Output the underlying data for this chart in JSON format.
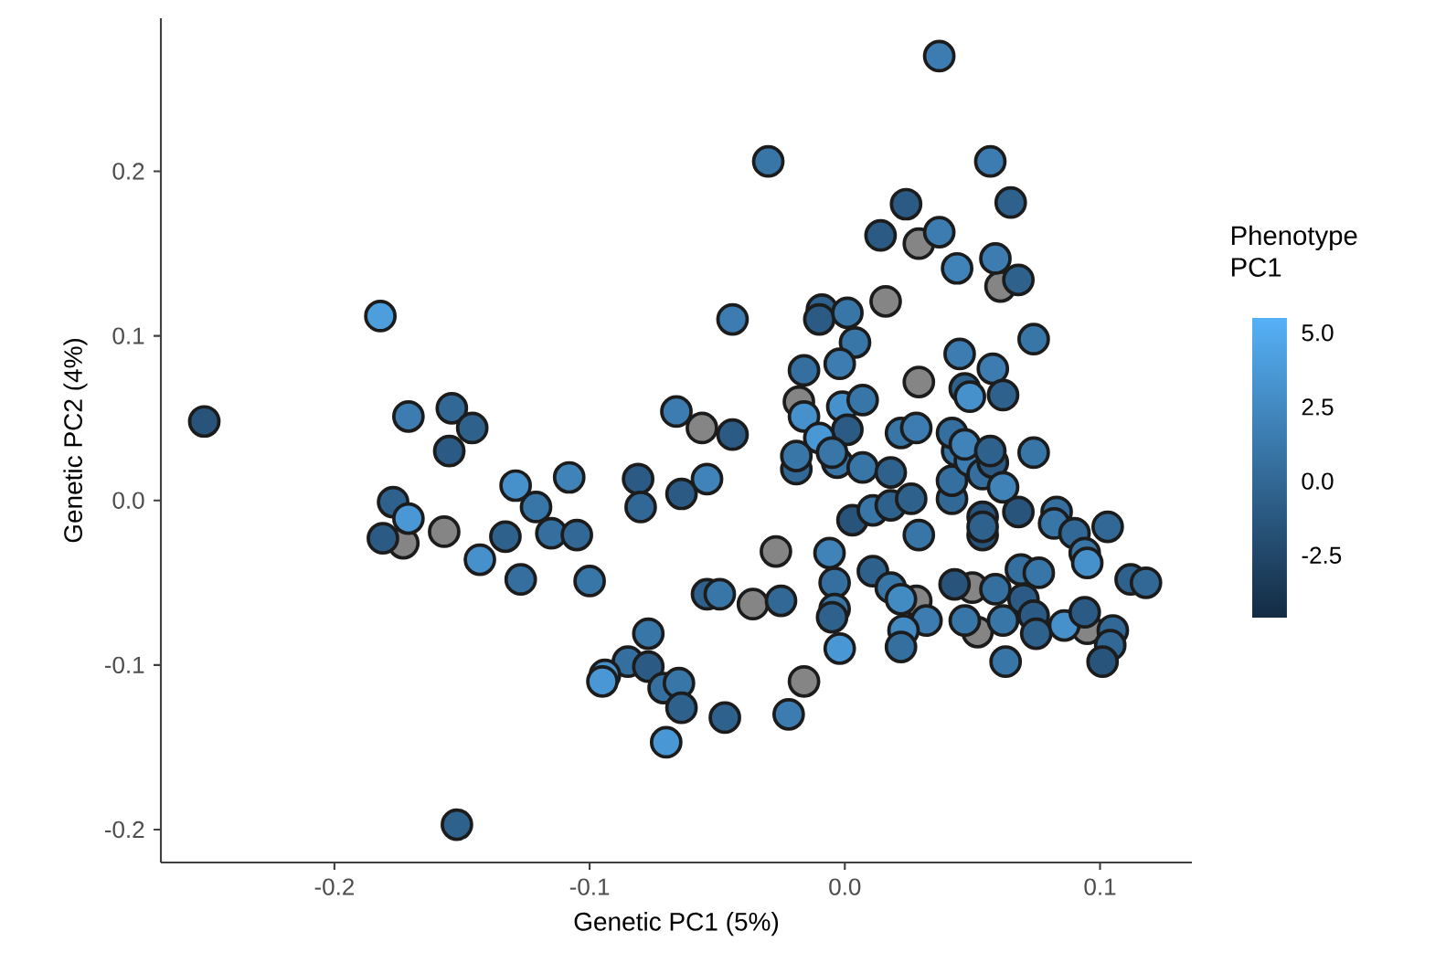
{
  "chart_data": {
    "type": "scatter",
    "xlabel": "Genetic PC1 (5%)",
    "ylabel": "Genetic PC2 (4%)",
    "clabel": "Phenotype PC1",
    "x": [
      -0.251,
      -0.182,
      -0.171,
      -0.154,
      -0.146,
      -0.155,
      -0.066,
      -0.056,
      -0.177,
      -0.171,
      -0.181,
      -0.173,
      -0.157,
      -0.143,
      -0.133,
      -0.129,
      -0.121,
      -0.108,
      -0.115,
      -0.105,
      -0.127,
      -0.1,
      -0.081,
      -0.08,
      -0.064,
      -0.054,
      -0.054,
      -0.077,
      -0.085,
      -0.094,
      -0.095,
      -0.077,
      -0.071,
      -0.065,
      -0.064,
      -0.07,
      -0.152,
      -0.019,
      -0.003,
      0.007,
      0.018,
      0.003,
      0.011,
      0.018,
      0.026,
      0.029,
      -0.027,
      -0.006,
      -0.049,
      -0.036,
      -0.025,
      -0.004,
      -0.004,
      -0.005,
      -0.002,
      -0.016,
      -0.022,
      -0.047,
      0.011,
      0.018,
      0.022,
      0.028,
      0.032,
      0.023,
      0.022,
      0.042,
      0.042,
      0.044,
      0.049,
      0.054,
      0.058,
      0.062,
      0.054,
      0.054,
      0.054,
      0.068,
      0.074,
      0.043,
      0.05,
      0.059,
      0.069,
      0.076,
      0.07,
      0.074,
      0.062,
      0.052,
      0.047,
      0.063,
      0.075,
      0.083,
      0.082,
      0.09,
      0.094,
      0.095,
      0.103,
      0.086,
      0.094,
      0.095,
      0.105,
      0.104,
      0.101,
      0.112,
      0.118,
      0.037,
      -0.03,
      0.057,
      0.024,
      0.065,
      0.014,
      0.029,
      0.037,
      0.044,
      0.059,
      0.068,
      0.061,
      0.016,
      -0.044,
      -0.009,
      -0.01,
      0.001,
      0.004,
      -0.002,
      -0.016,
      0.074,
      0.045,
      0.058,
      0.029,
      0.047,
      0.049,
      0.062,
      -0.018,
      -0.016,
      -0.001,
      0.007,
      0.001,
      -0.01,
      -0.005,
      -0.019,
      -0.044,
      0.022,
      0.028,
      0.042,
      0.047,
      0.057
    ],
    "values": [
      0.048,
      0.112,
      0.051,
      0.056,
      0.044,
      0.03,
      0.054,
      0.044,
      -0.001,
      -0.011,
      -0.023,
      -0.026,
      -0.019,
      -0.036,
      -0.022,
      0.009,
      -0.004,
      0.014,
      -0.02,
      -0.021,
      -0.048,
      -0.049,
      0.013,
      -0.004,
      0.004,
      0.013,
      -0.057,
      -0.081,
      -0.098,
      -0.106,
      -0.11,
      -0.101,
      -0.114,
      -0.111,
      -0.126,
      -0.147,
      -0.197,
      0.019,
      0.023,
      0.02,
      0.017,
      -0.012,
      -0.006,
      -0.003,
      0.001,
      -0.021,
      -0.031,
      -0.032,
      -0.057,
      -0.063,
      -0.061,
      -0.05,
      -0.066,
      -0.071,
      -0.09,
      -0.11,
      -0.13,
      -0.132,
      -0.043,
      -0.053,
      -0.06,
      -0.061,
      -0.073,
      -0.079,
      -0.089,
      0.001,
      0.012,
      0.03,
      0.024,
      0.016,
      0.023,
      0.008,
      -0.01,
      -0.021,
      -0.016,
      -0.007,
      0.029,
      -0.051,
      -0.053,
      -0.054,
      -0.042,
      -0.044,
      -0.06,
      -0.07,
      -0.073,
      -0.08,
      -0.073,
      -0.098,
      -0.081,
      -0.007,
      -0.014,
      -0.02,
      -0.032,
      -0.038,
      -0.016,
      -0.076,
      -0.068,
      -0.078,
      -0.079,
      -0.088,
      -0.098,
      -0.048,
      -0.05,
      0.27,
      0.206,
      0.206,
      0.18,
      0.181,
      0.161,
      0.156,
      0.163,
      0.141,
      0.147,
      0.134,
      0.13,
      0.121,
      0.11,
      0.116,
      0.11,
      0.114,
      0.096,
      0.083,
      0.079,
      0.098,
      0.089,
      0.08,
      0.072,
      0.068,
      0.063,
      0.064,
      0.06,
      0.051,
      0.057,
      0.061,
      0.043,
      0.038,
      0.029,
      0.027,
      0.04,
      0.041,
      0.044,
      0.041,
      0.034,
      0.03
    ],
    "cvalues": [
      -1.5,
      4,
      1.5,
      0,
      -0.5,
      -1,
      1.5,
      null,
      -0.5,
      3.5,
      -1,
      null,
      null,
      3,
      -0.5,
      3,
      1,
      2,
      0.5,
      0,
      0.5,
      1,
      -1,
      0,
      -1,
      2,
      -0.5,
      1,
      0.5,
      3,
      3.5,
      -1,
      0.5,
      1,
      -0.5,
      3.5,
      -0.5,
      0,
      1,
      1,
      -0.5,
      -1.5,
      1,
      -0.5,
      -0.5,
      1,
      null,
      2,
      1,
      null,
      0,
      0.5,
      1,
      -0.5,
      3.5,
      null,
      1.5,
      -0.5,
      -0.5,
      1,
      2.5,
      null,
      1.5,
      2.5,
      0.5,
      0,
      0.5,
      1,
      1.5,
      0.5,
      -1,
      2,
      -1.5,
      -1.5,
      -0.5,
      -1.5,
      1,
      -1.5,
      null,
      0.5,
      0.5,
      1,
      -1,
      -1,
      1,
      null,
      1,
      1,
      -0.5,
      0.5,
      1,
      0,
      1,
      3,
      0,
      3,
      -1,
      null,
      0,
      0,
      -1.5,
      -0.5,
      0,
      1.5,
      1,
      1.5,
      -1,
      -0.5,
      -1,
      null,
      1.5,
      2,
      1.5,
      -0.5,
      null,
      null,
      1.5,
      -0.5,
      -1,
      1,
      1,
      1.5,
      0.5,
      1,
      1.5,
      1.5,
      null,
      -0.5,
      3,
      -0.5,
      null,
      3,
      3,
      1,
      -1,
      3.5,
      1,
      1,
      -1,
      1,
      1.5,
      0.5,
      2,
      -0.5
    ],
    "xlim": [
      -0.268,
      0.136
    ],
    "ylim": [
      -0.22,
      0.293
    ],
    "xticks": [
      -0.2,
      -0.1,
      {
        "value": 0,
        "label": "0.0"
      },
      0.1
    ],
    "yticks": [
      -0.2,
      -0.1,
      {
        "value": 0,
        "label": "0.0"
      },
      0.1,
      0.2
    ],
    "clim": [
      -4.6,
      5.5
    ],
    "cticks": [
      -2.5,
      {
        "value": 0,
        "label": "0.0"
      },
      2.5,
      {
        "value": 5,
        "label": "5.0"
      }
    ],
    "marker": "circle"
  }
}
